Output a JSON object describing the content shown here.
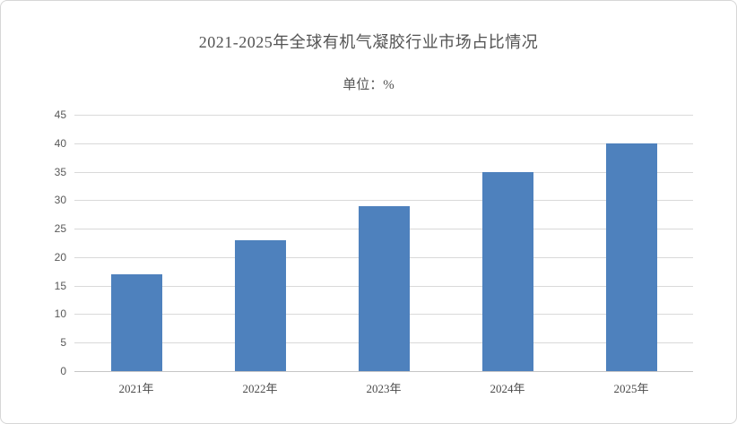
{
  "chart_data": {
    "type": "bar",
    "title": "2021-2025年全球有机气凝胶行业市场占比情况",
    "subtitle": "单位：%",
    "categories": [
      "2021年",
      "2022年",
      "2023年",
      "2024年",
      "2025年"
    ],
    "values": [
      17,
      23,
      29,
      35,
      40
    ],
    "xlabel": "",
    "ylabel": "",
    "ylim": [
      0,
      45
    ],
    "ytick_step": 5,
    "yticks": [
      0,
      5,
      10,
      15,
      20,
      25,
      30,
      35,
      40,
      45
    ],
    "grid": "horizontal",
    "legend": "none",
    "bar_color": "#4e81bd",
    "gridline_color": "#d9d9d9",
    "tick_label_color": "#595959",
    "title_color": "#535353"
  }
}
